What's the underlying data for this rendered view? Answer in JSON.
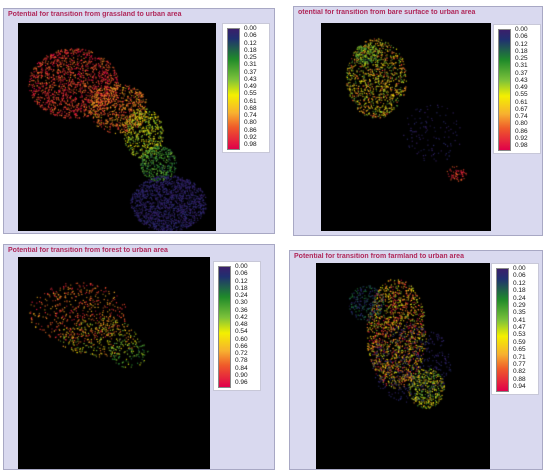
{
  "panels": [
    {
      "title": "Potential for transition from grassland to urban area",
      "legend": [
        "0.00",
        "0.06",
        "0.12",
        "0.18",
        "0.25",
        "0.31",
        "0.37",
        "0.43",
        "0.49",
        "0.55",
        "0.61",
        "0.68",
        "0.74",
        "0.80",
        "0.86",
        "0.92",
        "0.98"
      ]
    },
    {
      "title": "otential for transition from bare surface to urban area",
      "legend": [
        "0.00",
        "0.06",
        "0.12",
        "0.18",
        "0.25",
        "0.31",
        "0.37",
        "0.43",
        "0.49",
        "0.55",
        "0.61",
        "0.67",
        "0.74",
        "0.80",
        "0.86",
        "0.92",
        "0.98"
      ]
    },
    {
      "title": "Potential for transition from forest to urban area",
      "legend": [
        "0.00",
        "0.06",
        "0.12",
        "0.18",
        "0.24",
        "0.30",
        "0.36",
        "0.42",
        "0.48",
        "0.54",
        "0.60",
        "0.66",
        "0.72",
        "0.78",
        "0.84",
        "0.90",
        "0.96"
      ]
    },
    {
      "title": "Potential for transition from farmland to urban area",
      "legend": [
        "0.00",
        "0.06",
        "0.12",
        "0.18",
        "0.24",
        "0.29",
        "0.35",
        "0.41",
        "0.47",
        "0.53",
        "0.59",
        "0.65",
        "0.71",
        "0.77",
        "0.82",
        "0.88",
        "0.94"
      ]
    }
  ],
  "colors": {
    "title": "#b0285a",
    "ramp_low": "#3a1f6a",
    "ramp_green": "#1f8a2a",
    "ramp_yellow": "#f4f000",
    "ramp_high": "#e0004a"
  }
}
